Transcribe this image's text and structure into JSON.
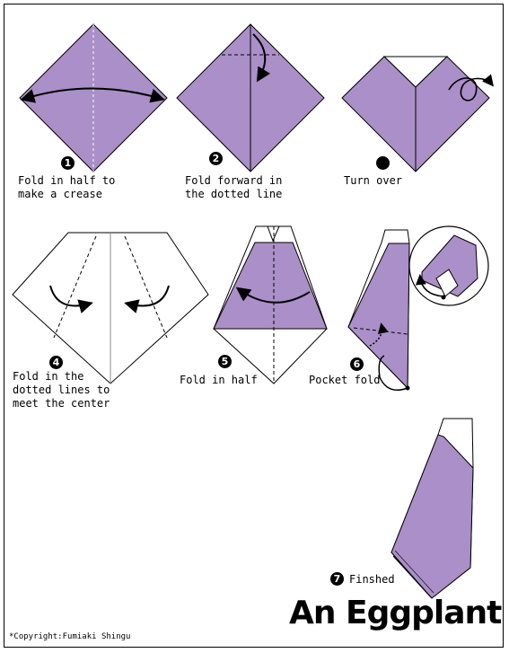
{
  "title": "An Eggplant",
  "copyright": "*Copyright:Fumiaki Shingu",
  "colors": {
    "paper_color": "#aa8fc8",
    "paper_back": "#ffffff",
    "line": "#000000"
  },
  "steps": [
    {
      "number": "1",
      "line1": "Fold in half to",
      "line2": "make a crease"
    },
    {
      "number": "2",
      "line1": "Fold forward in",
      "line2": "the dotted line"
    },
    {
      "number": "",
      "line1": "Turn over",
      "line2": ""
    },
    {
      "number": "4",
      "line1": "Fold in the",
      "line2": "dotted lines to",
      "line3": "meet the center"
    },
    {
      "number": "5",
      "line1": "Fold in half",
      "line2": ""
    },
    {
      "number": "6",
      "line1": "Pocket fold",
      "line2": ""
    },
    {
      "number": "7",
      "line1": "Finshed",
      "line2": ""
    }
  ]
}
